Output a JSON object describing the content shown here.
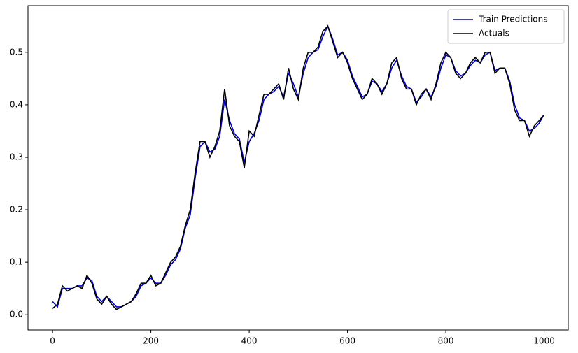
{
  "chart_data": {
    "type": "line",
    "x": [
      0,
      10,
      20,
      30,
      40,
      50,
      60,
      70,
      80,
      90,
      100,
      110,
      120,
      130,
      140,
      150,
      160,
      170,
      180,
      190,
      200,
      210,
      220,
      230,
      240,
      250,
      260,
      270,
      280,
      290,
      300,
      310,
      320,
      330,
      340,
      350,
      360,
      370,
      380,
      390,
      400,
      410,
      420,
      430,
      440,
      450,
      460,
      470,
      480,
      490,
      500,
      510,
      520,
      530,
      540,
      550,
      560,
      570,
      580,
      590,
      600,
      610,
      620,
      630,
      640,
      650,
      660,
      670,
      680,
      690,
      700,
      710,
      720,
      730,
      740,
      750,
      760,
      770,
      780,
      790,
      800,
      810,
      820,
      830,
      840,
      850,
      860,
      870,
      880,
      890,
      900,
      910,
      920,
      930,
      940,
      950,
      960,
      970,
      980,
      990,
      999
    ],
    "series": [
      {
        "name": "Train Predictions",
        "color": "#0000cc",
        "values": [
          0.025,
          0.015,
          0.05,
          0.05,
          0.05,
          0.055,
          0.055,
          0.07,
          0.065,
          0.035,
          0.025,
          0.035,
          0.025,
          0.015,
          0.015,
          0.02,
          0.025,
          0.035,
          0.055,
          0.06,
          0.07,
          0.06,
          0.06,
          0.075,
          0.095,
          0.105,
          0.125,
          0.165,
          0.19,
          0.26,
          0.32,
          0.33,
          0.31,
          0.315,
          0.34,
          0.41,
          0.37,
          0.345,
          0.335,
          0.29,
          0.33,
          0.345,
          0.37,
          0.41,
          0.42,
          0.425,
          0.435,
          0.415,
          0.46,
          0.44,
          0.415,
          0.46,
          0.49,
          0.5,
          0.505,
          0.53,
          0.55,
          0.525,
          0.495,
          0.5,
          0.485,
          0.455,
          0.435,
          0.415,
          0.42,
          0.445,
          0.44,
          0.425,
          0.44,
          0.47,
          0.485,
          0.455,
          0.435,
          0.43,
          0.405,
          0.415,
          0.43,
          0.415,
          0.435,
          0.47,
          0.495,
          0.49,
          0.465,
          0.455,
          0.46,
          0.475,
          0.485,
          0.48,
          0.495,
          0.5,
          0.465,
          0.47,
          0.47,
          0.445,
          0.4,
          0.375,
          0.37,
          0.35,
          0.355,
          0.365,
          0.38
        ]
      },
      {
        "name": "Actuals",
        "color": "#000000",
        "values": [
          0.012,
          0.02,
          0.055,
          0.045,
          0.05,
          0.055,
          0.05,
          0.075,
          0.06,
          0.03,
          0.02,
          0.035,
          0.02,
          0.01,
          0.015,
          0.02,
          0.025,
          0.04,
          0.06,
          0.06,
          0.075,
          0.055,
          0.06,
          0.08,
          0.1,
          0.11,
          0.13,
          0.17,
          0.2,
          0.27,
          0.33,
          0.33,
          0.3,
          0.32,
          0.35,
          0.43,
          0.36,
          0.34,
          0.33,
          0.28,
          0.35,
          0.34,
          0.38,
          0.42,
          0.42,
          0.43,
          0.44,
          0.41,
          0.47,
          0.43,
          0.41,
          0.47,
          0.5,
          0.5,
          0.51,
          0.54,
          0.55,
          0.52,
          0.49,
          0.5,
          0.48,
          0.45,
          0.43,
          0.41,
          0.42,
          0.45,
          0.44,
          0.42,
          0.44,
          0.48,
          0.49,
          0.45,
          0.43,
          0.43,
          0.4,
          0.42,
          0.43,
          0.41,
          0.44,
          0.48,
          0.5,
          0.49,
          0.46,
          0.45,
          0.46,
          0.48,
          0.49,
          0.48,
          0.5,
          0.5,
          0.46,
          0.47,
          0.47,
          0.44,
          0.39,
          0.37,
          0.37,
          0.34,
          0.36,
          0.37,
          0.38
        ]
      }
    ],
    "xlim": [
      -50,
      1049
    ],
    "ylim": [
      -0.029,
      0.589
    ],
    "xticks": [
      0,
      200,
      400,
      600,
      800,
      1000
    ],
    "yticks": [
      {
        "value": 0,
        "label": "0.0"
      },
      0.1,
      0.2,
      0.3,
      0.4,
      0.5
    ],
    "legend": "upper right"
  }
}
